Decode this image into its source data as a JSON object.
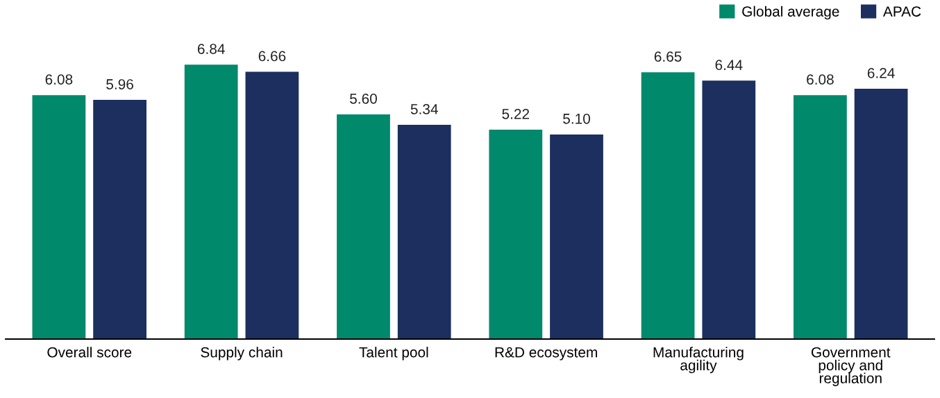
{
  "chart_data": {
    "type": "bar",
    "categories": [
      "Overall score",
      "Supply chain",
      "Talent pool",
      "R&D ecosystem",
      "Manufacturing\nagility",
      "Government\npolicy and\nregulation"
    ],
    "series": [
      {
        "name": "Global average",
        "color": "#00896b",
        "values": [
          6.08,
          6.84,
          5.6,
          5.22,
          6.65,
          6.08
        ],
        "value_labels": [
          "6.08",
          "6.84",
          "5.60",
          "5.22",
          "6.65",
          "6.08"
        ]
      },
      {
        "name": "APAC",
        "color": "#1c2f5e",
        "values": [
          5.96,
          6.66,
          5.34,
          5.1,
          6.44,
          6.24
        ],
        "value_labels": [
          "5.96",
          "6.66",
          "5.34",
          "5.10",
          "6.44",
          "6.24"
        ]
      }
    ],
    "legend": "top right",
    "tick_labels": "x"
  }
}
